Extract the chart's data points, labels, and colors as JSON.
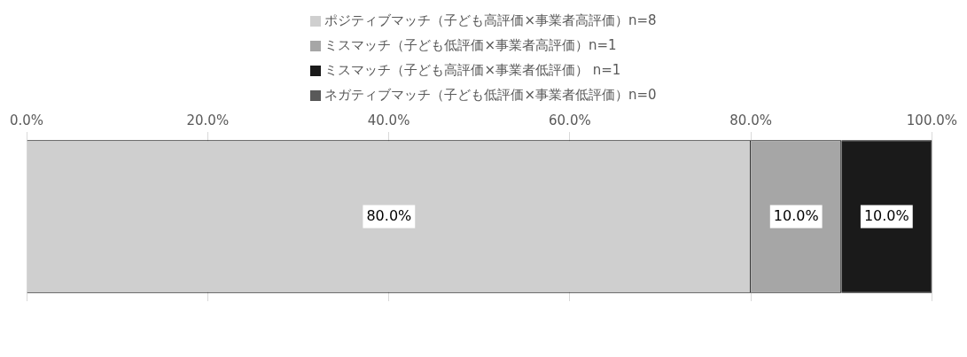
{
  "chart_data": {
    "type": "bar",
    "orientation": "horizontal",
    "stacked": true,
    "categories": [
      null
    ],
    "series": [
      {
        "name": "ポジティブマッチ（子ども高評価×事業者高評価）n=8",
        "color": "#cfcfcf",
        "values": [
          80
        ],
        "value_labels": [
          "80.0%"
        ]
      },
      {
        "name": "ミスマッチ（子ども低評価×事業者高評価）n=1",
        "color": "#a6a6a6",
        "values": [
          10
        ],
        "value_labels": [
          "10.0%"
        ]
      },
      {
        "name": "ミスマッチ（子ども高評価×事業者低評価） n=1",
        "color": "#1a1a1a",
        "values": [
          10
        ],
        "value_labels": [
          "10.0%"
        ]
      },
      {
        "name": "ネガティブマッチ（子ども低評価×事業者低評価）n=0",
        "color": "#595959",
        "values": [
          0
        ],
        "value_labels": [
          null
        ]
      }
    ],
    "xlim": [
      0,
      100
    ],
    "xticks": [
      {
        "value": 0,
        "label": "0.0%"
      },
      {
        "value": 20,
        "label": "20.0%"
      },
      {
        "value": 40,
        "label": "40.0%"
      },
      {
        "value": 60,
        "label": "60.0%"
      },
      {
        "value": 80,
        "label": "80.0%"
      },
      {
        "value": 100,
        "label": "100.0%"
      }
    ],
    "grid": "x",
    "legend": "top"
  }
}
